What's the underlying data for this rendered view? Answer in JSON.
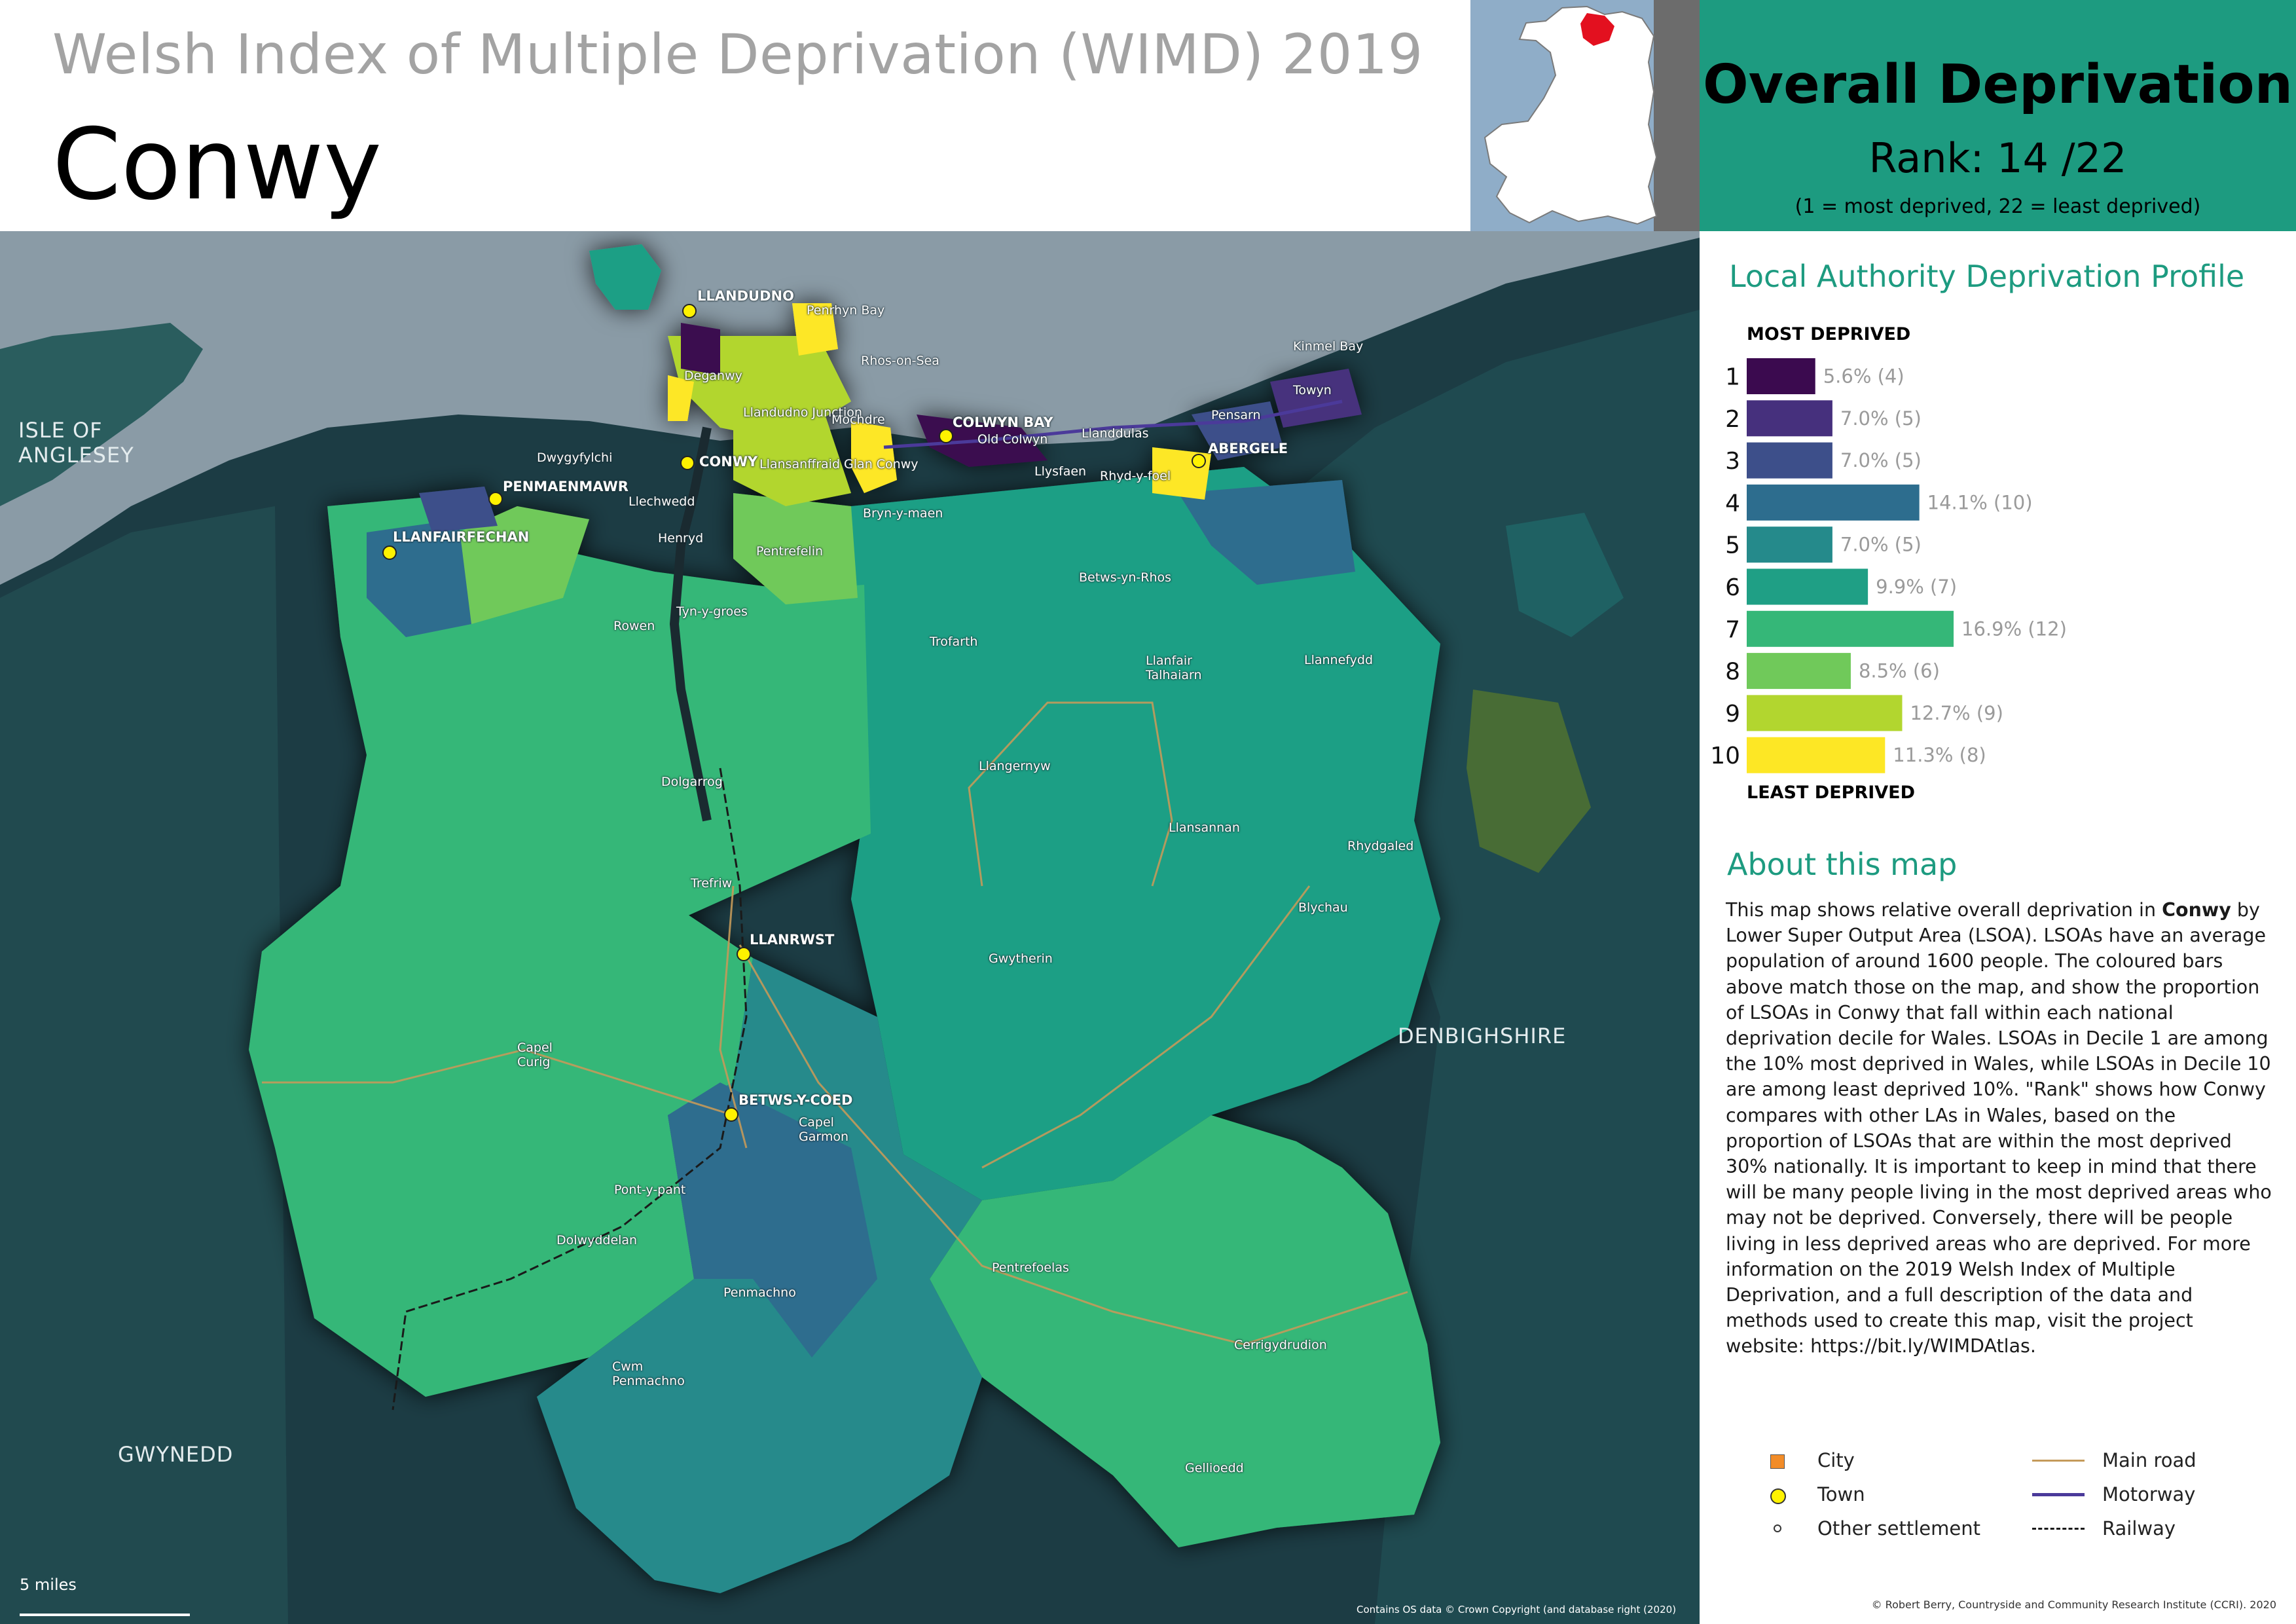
{
  "header": {
    "subtitle": "Welsh Index of Multiple Deprivation (WIMD) 2019",
    "title": "Conwy"
  },
  "rank_panel": {
    "heading": "Overall Deprivation",
    "rank_label": "Rank:",
    "rank_value": "14",
    "rank_total": "/22",
    "note": "(1 =   most deprived, 22 = least deprived)"
  },
  "profile": {
    "title": "Local Authority Deprivation Profile",
    "top_label": "MOST DEPRIVED",
    "bottom_label": "LEAST DEPRIVED"
  },
  "chart_data": {
    "type": "bar",
    "orientation": "horizontal",
    "categories": [
      "1",
      "2",
      "3",
      "4",
      "5",
      "6",
      "7",
      "8",
      "9",
      "10"
    ],
    "values": [
      5.6,
      7.0,
      7.0,
      14.1,
      7.0,
      9.9,
      16.9,
      8.5,
      12.7,
      11.3
    ],
    "counts": [
      4,
      5,
      5,
      10,
      5,
      7,
      12,
      6,
      9,
      8
    ],
    "labels": [
      "5.6% (4)",
      "7.0% (5)",
      "7.0% (5)",
      "14.1% (10)",
      "7.0% (5)",
      "9.9% (7)",
      "16.9% (12)",
      "8.5% (6)",
      "12.7% (9)",
      "11.3% (8)"
    ],
    "colors": [
      "#3b0a4f",
      "#46307d",
      "#3d4f8a",
      "#2d6d8e",
      "#258a8b",
      "#1f9f85",
      "#35b778",
      "#70c95a",
      "#b2d62f",
      "#fde725"
    ],
    "title": "Local Authority Deprivation Profile"
  },
  "about": {
    "title": "About this map",
    "text_pre": "This map shows relative overall deprivation in ",
    "text_bold": "Conwy",
    "text_post": " by Lower Super Output Area (LSOA). LSOAs have an average population of around 1600 people. The coloured bars above match those on the map, and show the proportion of LSOAs in Conwy that fall within each national deprivation decile for Wales. LSOAs in Decile 1 are among the 10% most deprived in Wales, while LSOAs in Decile 10 are among least deprived 10%. \"Rank\" shows how Conwy compares with other LAs in Wales, based on the proportion of LSOAs that are within the most deprived 30% nationally. It is important to keep in mind that there will be many people living in the most deprived areas who may not be deprived. Conversely, there will be people living in less deprived areas who are deprived. For more information on the 2019 Welsh Index of Multiple Deprivation, and a full description of the data and methods used to create this map, visit the project website: https://bit.ly/WIMDAtlas."
  },
  "legend": {
    "city": "City",
    "town": "Town",
    "other": "Other settlement",
    "main_road": "Main road",
    "motorway": "Motorway",
    "railway": "Railway",
    "city_color": "#f28c28",
    "town_color": "#fff200",
    "road_color": "#c49a5a",
    "motorway_color": "#4b3a9a"
  },
  "map": {
    "regions": {
      "anglesey": "ISLE OF\nANGLESEY",
      "denbighshire": "DENBIGHSHIRE",
      "gwynedd": "GWYNEDD"
    },
    "towns": [
      "LLANDUDNO",
      "CONWY",
      "PENMAENMAWR",
      "LLANFAIRFECHAN",
      "COLWYN BAY",
      "ABERGELE",
      "LLANRWST",
      "BETWS-Y-COED"
    ],
    "settlements": [
      "Penrhyn Bay",
      "Rhos-on-Sea",
      "Deganwy",
      "Llandudno Junction",
      "Mochdre",
      "Old Colwyn",
      "Llanddulas",
      "Kinmel Bay",
      "Towyn",
      "Pensarn",
      "Dwygyfylchi",
      "Llechwedd",
      "Henryd",
      "Llansanffraid Glan Conwy",
      "Llysfaen",
      "Rhyd-y-foel",
      "Bryn-y-maen",
      "Pentrefelin",
      "Betws-yn-Rhos",
      "Tyn-y-groes",
      "Rowen",
      "Trofarth",
      "Llanfair Talhaiarn",
      "Llannefydd",
      "Llangernyw",
      "Dolgarrog",
      "Llansannan",
      "Rhydgaled",
      "Trefriw",
      "Blychau",
      "Gwytherin",
      "Capel Curig",
      "Capel Garmon",
      "Pont-y-pant",
      "Dolwyddelan",
      "Pentrefoelas",
      "Penmachno",
      "Cwm Penmachno",
      "Cerrigydrudion",
      "Gellioedd"
    ],
    "scale_label": "5 miles",
    "copyright": "Contains OS data © Crown Copyright (and database right (2020)"
  },
  "credit": "© Robert Berry, Countryside and Community Research Institute (CCRI). 2020"
}
